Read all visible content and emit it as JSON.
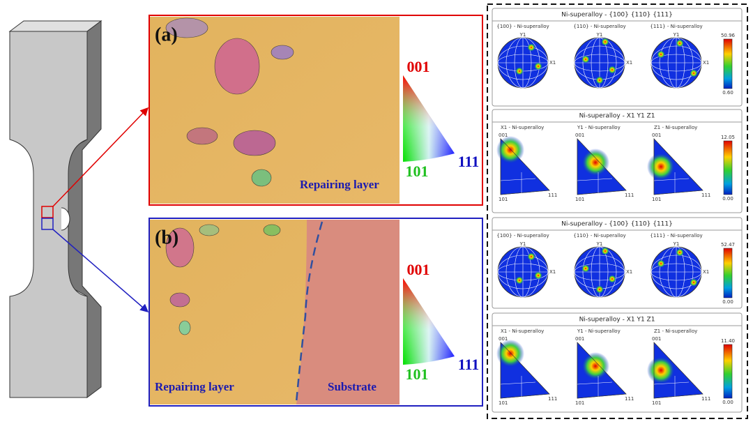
{
  "panels": [
    {
      "label": "(a)",
      "layers": [
        "Repairing layer"
      ],
      "ipf_key": [
        "001",
        "101",
        "111"
      ]
    },
    {
      "label": "(b)",
      "layers": [
        "Repairing layer",
        "Substrate"
      ],
      "ipf_key": [
        "001",
        "101",
        "111"
      ]
    }
  ],
  "figures": [
    {
      "kind": "pole",
      "title": "Ni-superalloy - {100} {110} {111}",
      "plots": [
        "{100} - Ni-superalloy",
        "{110} - Ni-superalloy",
        "{111} - Ni-superalloy"
      ],
      "axis_labels": [
        "Y1",
        "X1"
      ],
      "scale": [
        "50.96",
        "0.60"
      ]
    },
    {
      "kind": "ipf",
      "title": "Ni-superalloy - X1 Y1 Z1",
      "plots": [
        "X1 - Ni-superalloy",
        "Y1 - Ni-superalloy",
        "Z1 - Ni-superalloy"
      ],
      "axis_labels": [
        "001",
        "101",
        "111"
      ],
      "scale": [
        "12.05",
        "0.00"
      ]
    },
    {
      "kind": "pole",
      "title": "Ni-superalloy - {100} {110} {111}",
      "plots": [
        "{100} - Ni-superalloy",
        "{110} - Ni-superalloy",
        "{111} - Ni-superalloy"
      ],
      "axis_labels": [
        "Y1",
        "X1"
      ],
      "scale": [
        "52.47",
        "0.00"
      ]
    },
    {
      "kind": "ipf",
      "title": "Ni-superalloy - X1 Y1 Z1",
      "plots": [
        "X1 - Ni-superalloy",
        "Y1 - Ni-superalloy",
        "Z1 - Ni-superalloy"
      ],
      "axis_labels": [
        "001",
        "101",
        "111"
      ],
      "scale": [
        "11.40",
        "0.00"
      ]
    }
  ]
}
